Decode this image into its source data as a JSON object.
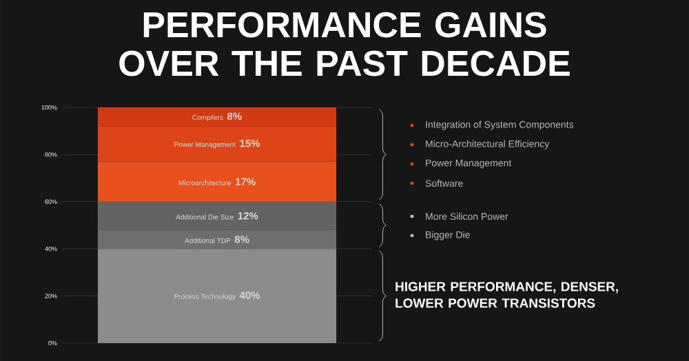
{
  "chart_data": {
    "type": "bar",
    "stacked": true,
    "title": "PERFORMANCE GAINS OVER THE PAST DECADE",
    "categories": [
      null
    ],
    "series": [
      {
        "name": "Process Technology",
        "color": "#8c8c8c",
        "values": [
          40
        ],
        "value_labels": [
          "40%"
        ]
      },
      {
        "name": "Additional TDP",
        "color": "#6e6e6e",
        "values": [
          8
        ],
        "value_labels": [
          "8%"
        ]
      },
      {
        "name": "Additional Die Size",
        "color": "#636363",
        "values": [
          12
        ],
        "value_labels": [
          "12%"
        ]
      },
      {
        "name": "Microarchitecture",
        "color": "#e8501e",
        "values": [
          17
        ],
        "value_labels": [
          "17%"
        ]
      },
      {
        "name": "Power Management",
        "color": "#dd4518",
        "values": [
          15
        ],
        "value_labels": [
          "15%"
        ]
      },
      {
        "name": "Compilers",
        "color": "#cf3a12",
        "values": [
          8
        ],
        "value_labels": [
          "8%"
        ]
      }
    ],
    "ylim": [
      0,
      100
    ],
    "yticks": [
      {
        "value": 0,
        "label": "0%"
      },
      {
        "value": 20,
        "label": "20%"
      },
      {
        "value": 40,
        "label": "40%"
      },
      {
        "value": 60,
        "label": "60%"
      },
      {
        "value": 80,
        "label": "80%"
      },
      {
        "value": 100,
        "label": "100%"
      }
    ],
    "grid": "y",
    "annotations": [
      "Integration of System Components",
      "Micro-Architectural Efficiency",
      "Power Management",
      "Software",
      "More Silicon Power",
      "Bigger Die",
      "HIGHER PERFORMANCE, DENSER, LOWER POWER TRANSISTORS"
    ]
  }
}
